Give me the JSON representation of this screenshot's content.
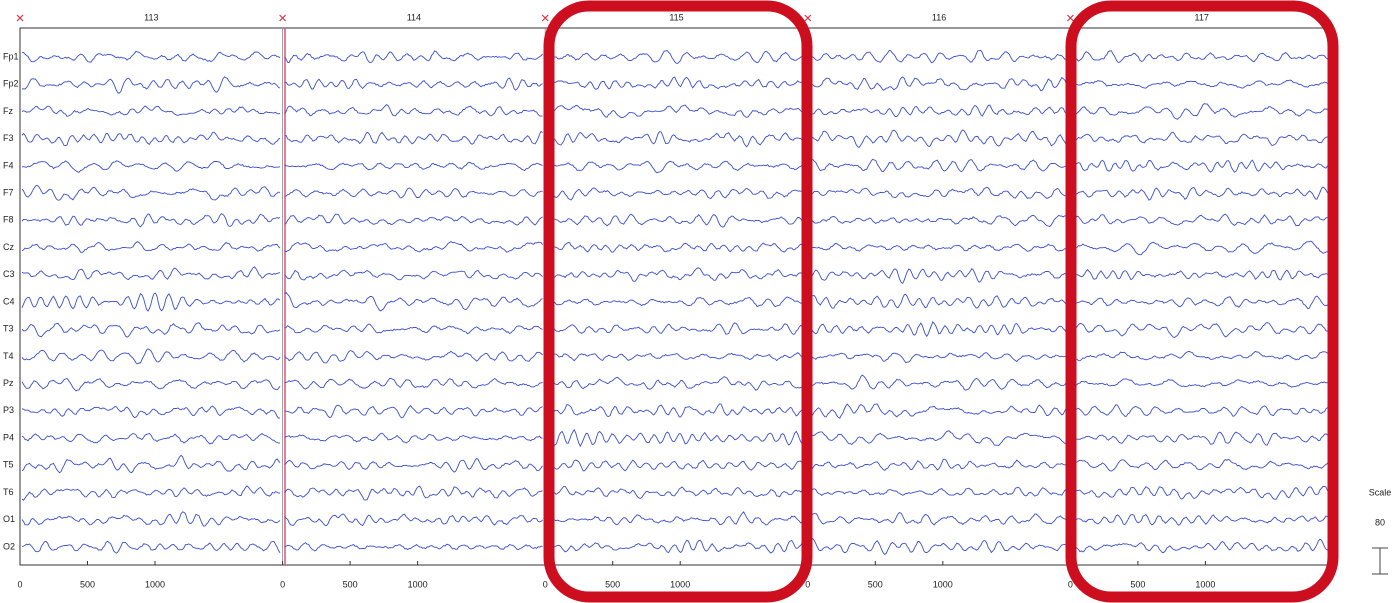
{
  "epochs": [
    {
      "label": "113",
      "ticks": [
        0,
        500,
        1000
      ]
    },
    {
      "label": "114",
      "ticks": [
        0,
        500,
        1000
      ]
    },
    {
      "label": "115",
      "ticks": [
        0,
        500,
        1000
      ]
    },
    {
      "label": "116",
      "ticks": [
        0,
        500,
        1000
      ]
    },
    {
      "label": "117",
      "ticks": [
        0,
        500,
        1000
      ]
    }
  ],
  "channels": [
    "Fp1",
    "Fp2",
    "Fz",
    "F3",
    "F4",
    "F7",
    "F8",
    "Cz",
    "C3",
    "C4",
    "T3",
    "T4",
    "Pz",
    "P3",
    "P4",
    "T5",
    "T6",
    "O1",
    "O2"
  ],
  "scale": {
    "label": "Scale",
    "value": 80
  }
}
